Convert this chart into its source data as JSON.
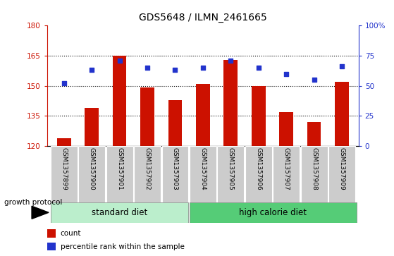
{
  "title": "GDS5648 / ILMN_2461665",
  "samples": [
    "GSM1357899",
    "GSM1357900",
    "GSM1357901",
    "GSM1357902",
    "GSM1357903",
    "GSM1357904",
    "GSM1357905",
    "GSM1357906",
    "GSM1357907",
    "GSM1357908",
    "GSM1357909"
  ],
  "counts": [
    124,
    139,
    165,
    149,
    143,
    151,
    163,
    150,
    137,
    132,
    152
  ],
  "percentiles": [
    52,
    63,
    71,
    65,
    63,
    65,
    71,
    65,
    60,
    55,
    66
  ],
  "ylim_left": [
    120,
    180
  ],
  "ylim_right": [
    0,
    100
  ],
  "yticks_left": [
    120,
    135,
    150,
    165,
    180
  ],
  "yticks_right": [
    0,
    25,
    50,
    75,
    100
  ],
  "ytick_labels_right": [
    "0",
    "25",
    "50",
    "75",
    "100%"
  ],
  "bar_color": "#cc1100",
  "dot_color": "#2233cc",
  "standard_diet_count": 5,
  "high_calorie_diet_count": 6,
  "group_label_standard": "standard diet",
  "group_label_high": "high calorie diet",
  "group_color_standard": "#bbeecc",
  "group_color_high": "#55cc77",
  "tick_bg_color": "#cccccc",
  "legend_count_label": "count",
  "legend_pct_label": "percentile rank within the sample",
  "growth_protocol_label": "growth protocol",
  "bar_width": 0.5,
  "title_fontsize": 10,
  "tick_fontsize": 7.5,
  "label_fontsize": 8.5,
  "sample_fontsize": 6.5
}
